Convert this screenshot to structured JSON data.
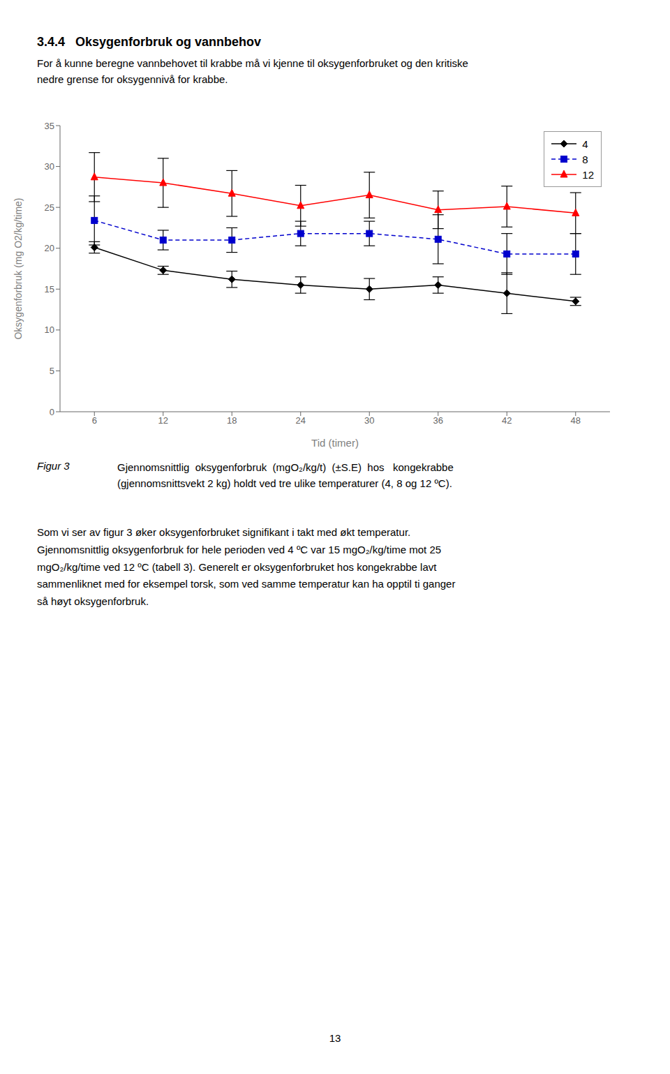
{
  "chart_data": {
    "type": "line",
    "title": "3.4.4   Oksygenforbruk og vannbehov",
    "subtitle": "For å kunne beregne vannbehovet til krabbe må vi kjenne til oksygenforbruket og den kritiske\nnedre grense for oksygennivå for krabbe.",
    "x_label": "Tid (timer)",
    "y_label": "Oksygenforbruk (mg O2/kg/time)",
    "x": [
      6,
      12,
      18,
      24,
      30,
      36,
      42,
      48
    ],
    "series": [
      {
        "name": "4",
        "color": "#000000",
        "marker": "diamond",
        "line_style": "solid",
        "values": [
          20.1,
          17.3,
          16.2,
          15.5,
          15.0,
          15.5,
          14.5,
          13.5
        ],
        "errors": [
          0.7,
          0.5,
          1.0,
          1.0,
          1.3,
          1.0,
          2.5,
          0.5
        ]
      },
      {
        "name": "8",
        "color": "#0000CD",
        "marker": "square",
        "line_style": "dashed",
        "values": [
          23.4,
          21.0,
          21.0,
          21.8,
          21.8,
          21.1,
          19.3,
          19.3
        ],
        "errors": [
          3.0,
          1.2,
          1.5,
          1.5,
          1.5,
          3.0,
          2.5,
          2.5
        ]
      },
      {
        "name": "12",
        "color": "#FF0000",
        "marker": "triangle",
        "line_style": "solid",
        "values": [
          28.7,
          28.0,
          26.7,
          25.2,
          26.5,
          24.7,
          25.1,
          24.3
        ],
        "errors": [
          3.0,
          3.0,
          2.8,
          2.5,
          2.8,
          2.3,
          2.5,
          2.5
        ]
      }
    ],
    "xlim": [
      3,
      51
    ],
    "xticks": [
      6,
      12,
      18,
      24,
      30,
      36,
      42,
      48
    ],
    "ylim": [
      0,
      35
    ],
    "yticks": [
      0,
      5,
      10,
      15,
      20,
      25,
      30,
      35
    ],
    "grid": false,
    "legend": "upper right",
    "annotations": [
      "Figur 3",
      "Gjennomsnittlig  oksygenforbruk  (mgO₂/kg/t)  (±S.E)  hos   kongekrabbe\n(gjennomsnittsvekt 2 kg) holdt ved tre ulike temperaturer (4, 8 og 12 ºC).",
      "Som vi ser av figur 3 øker oksygenforbruket signifikant i takt med økt temperatur.\nGjennomsnittlig oksygenforbruk for hele perioden ved 4 ºC var 15 mgO₂/kg/time mot 25\nmgO₂/kg/time ved 12 ºC (tabell 3). Generelt er oksygenforbruket hos kongekrabbe lavt\nsammenliknet med for eksempel torsk, som ved samme temperatur kan ha opptil ti ganger\nså høyt oksygenforbruk.",
      "13"
    ]
  }
}
